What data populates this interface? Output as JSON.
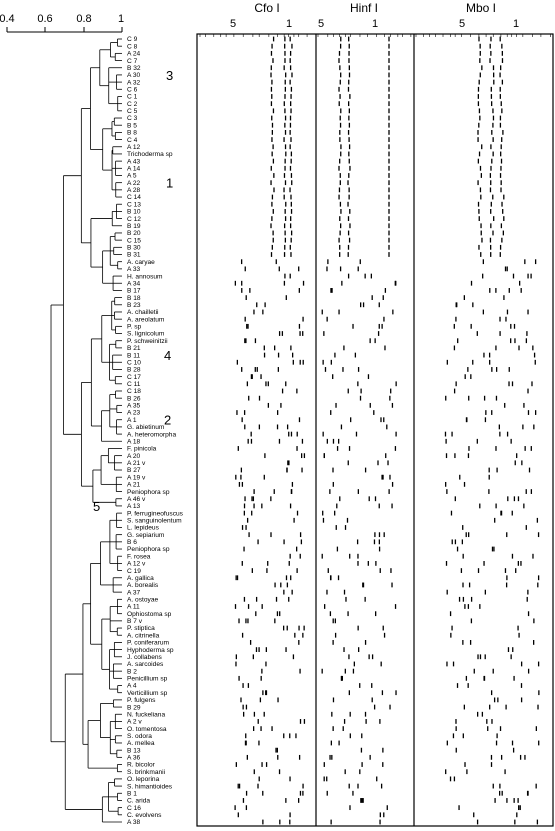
{
  "dendrogram": {
    "scale_ticks": [
      "0.4",
      "0.6",
      "0.8",
      "1"
    ],
    "group_markers": [
      {
        "label": "3",
        "row": 5
      },
      {
        "label": "1",
        "row": 20
      },
      {
        "label": "4",
        "row": 44
      },
      {
        "label": "2",
        "row": 53
      }
    ],
    "group_marker_5": {
      "label": "5",
      "row": 65
    },
    "taxa": [
      "C 9",
      "C 8",
      "A 24",
      "C 7",
      "B 32",
      "A 30",
      "A 32",
      "C 6",
      "C 1",
      "C 2",
      "C 5",
      "C 3",
      "B 5",
      "B 8",
      "C 4",
      "A 12",
      "Trichoderma sp",
      "A 43",
      "A 14",
      "A 5",
      "A 22",
      "A 28",
      "C 14",
      "C 13",
      "B 10",
      "C 12",
      "B 19",
      "B 20",
      "C 15",
      "B 30",
      "B 31",
      "A. caryae",
      "A 33",
      "H. annosum",
      "A 34",
      "B 17",
      "B 18",
      "B 23",
      "A. chailletii",
      "A. areolatum",
      "P. sp",
      "S. lignicolum",
      "P. schweinitzii",
      "B 21",
      "B 11",
      "C 10",
      "B 28",
      "C 17",
      "C 11",
      "C 18",
      "B 26",
      "A 35",
      "A 23",
      "A 1",
      "G. abietinum",
      "A. heteromorpha",
      "A 18",
      "F. pinicola",
      "A 20",
      "A 21 v",
      "B 27",
      "A 19 v",
      "A 21",
      "Peniophora sp",
      "A 46 v",
      "A 13",
      "P. ferrugineofuscus",
      "S. sanguinolentum",
      "L. lepideus",
      "G. sepiarium",
      "B 6",
      "Peniophora sp",
      "F. rosea",
      "A 12 v",
      "C 19",
      "A. gallica",
      "A. borealis",
      "A 37",
      "A. ostoyae",
      "A 11",
      "Ophiostoma sp",
      "B 7 v",
      "P. stiptica",
      "A. citrinella",
      "P. coniferarum",
      "Hyphoderma sp",
      "J. collabens",
      "A. sarcoides",
      "B 2",
      "Penicillium sp",
      "A 4",
      "Verticillium sp",
      "P. fulgens",
      "B 29",
      "N. fuckeliana",
      "A 2 v",
      "O. tomentosa",
      "S. odora",
      "A. mellea",
      "B 13",
      "A 36",
      "R. bicolor",
      "S. brinkmanii",
      "O. leporina",
      "S. himantioides",
      "B 1",
      "C. arida",
      "C 16",
      "C. evolvens",
      "A 38"
    ]
  },
  "gel_panels": [
    {
      "title": "Cfo I",
      "ticks": [
        "5",
        "1"
      ]
    },
    {
      "title": "Hinf I",
      "ticks": [
        "5",
        "1"
      ]
    },
    {
      "title": "Mbo I",
      "ticks": [
        "5",
        "1"
      ]
    }
  ]
}
